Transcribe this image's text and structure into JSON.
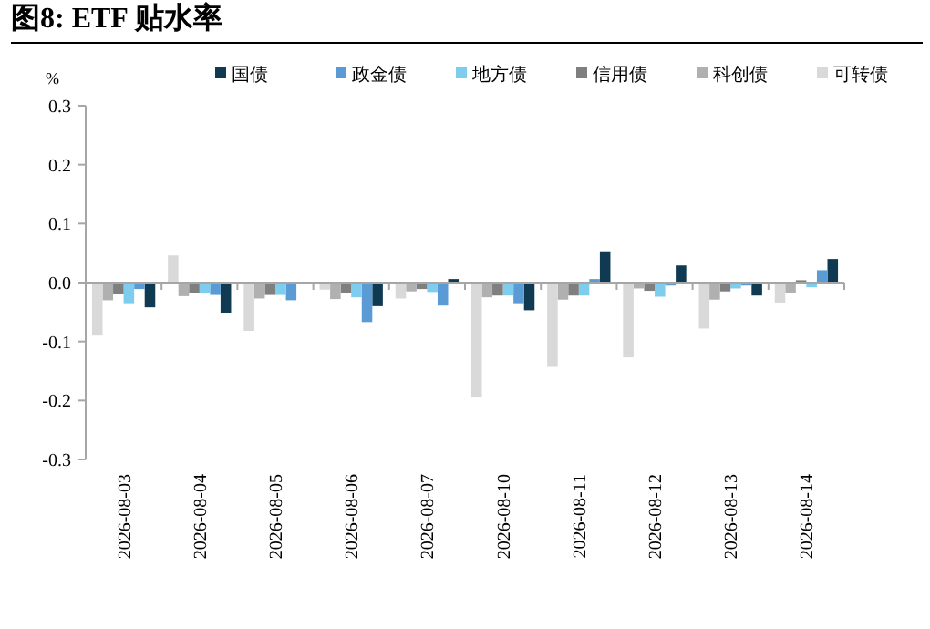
{
  "chart_data": {
    "type": "bar",
    "title": "图8: ETF 贴水率",
    "ylabel": "%",
    "categories": [
      "2026-08-03",
      "2026-08-04",
      "2026-08-05",
      "2026-08-06",
      "2026-08-07",
      "2026-08-10",
      "2026-08-11",
      "2026-08-12",
      "2026-08-13",
      "2026-08-14"
    ],
    "series": [
      {
        "name": "国债",
        "color": "#0f3a52",
        "values": [
          -0.042,
          -0.051,
          0,
          -0.04,
          0.006,
          -0.047,
          0.053,
          0.029,
          -0.022,
          0.04
        ]
      },
      {
        "name": "政金债",
        "color": "#5b9bd5",
        "values": [
          -0.011,
          -0.021,
          -0.03,
          -0.067,
          -0.039,
          -0.035,
          0.006,
          -0.005,
          -0.005,
          0.021
        ]
      },
      {
        "name": "地方债",
        "color": "#7fcdee",
        "values": [
          -0.035,
          -0.017,
          -0.021,
          -0.025,
          -0.016,
          -0.022,
          -0.022,
          -0.024,
          -0.01,
          -0.008
        ]
      },
      {
        "name": "信用债",
        "color": "#7f7f7f",
        "values": [
          -0.02,
          -0.017,
          -0.021,
          -0.017,
          -0.011,
          -0.022,
          -0.022,
          -0.014,
          -0.015,
          0.004
        ]
      },
      {
        "name": "科创债",
        "color": "#b0b0b0",
        "values": [
          -0.03,
          -0.023,
          -0.027,
          -0.028,
          -0.015,
          -0.025,
          -0.029,
          -0.01,
          -0.029,
          -0.017
        ]
      },
      {
        "name": "可转债",
        "color": "#d9d9d9",
        "values": [
          -0.09,
          0.046,
          -0.082,
          -0.012,
          -0.027,
          -0.195,
          -0.143,
          -0.127,
          -0.078,
          -0.034
        ]
      }
    ],
    "ylim": [
      -0.3,
      0.3
    ],
    "yticks": [
      {
        "value": -0.3,
        "label": "-0.3"
      },
      {
        "value": -0.2,
        "label": "-0.2"
      },
      {
        "value": -0.1,
        "label": "-0.1"
      },
      {
        "value": 0,
        "label": "0.0"
      },
      {
        "value": 0.1,
        "label": "0.1"
      },
      {
        "value": 0.2,
        "label": "0.2"
      },
      {
        "value": 0.3,
        "label": "0.3"
      }
    ],
    "legend": "top"
  }
}
